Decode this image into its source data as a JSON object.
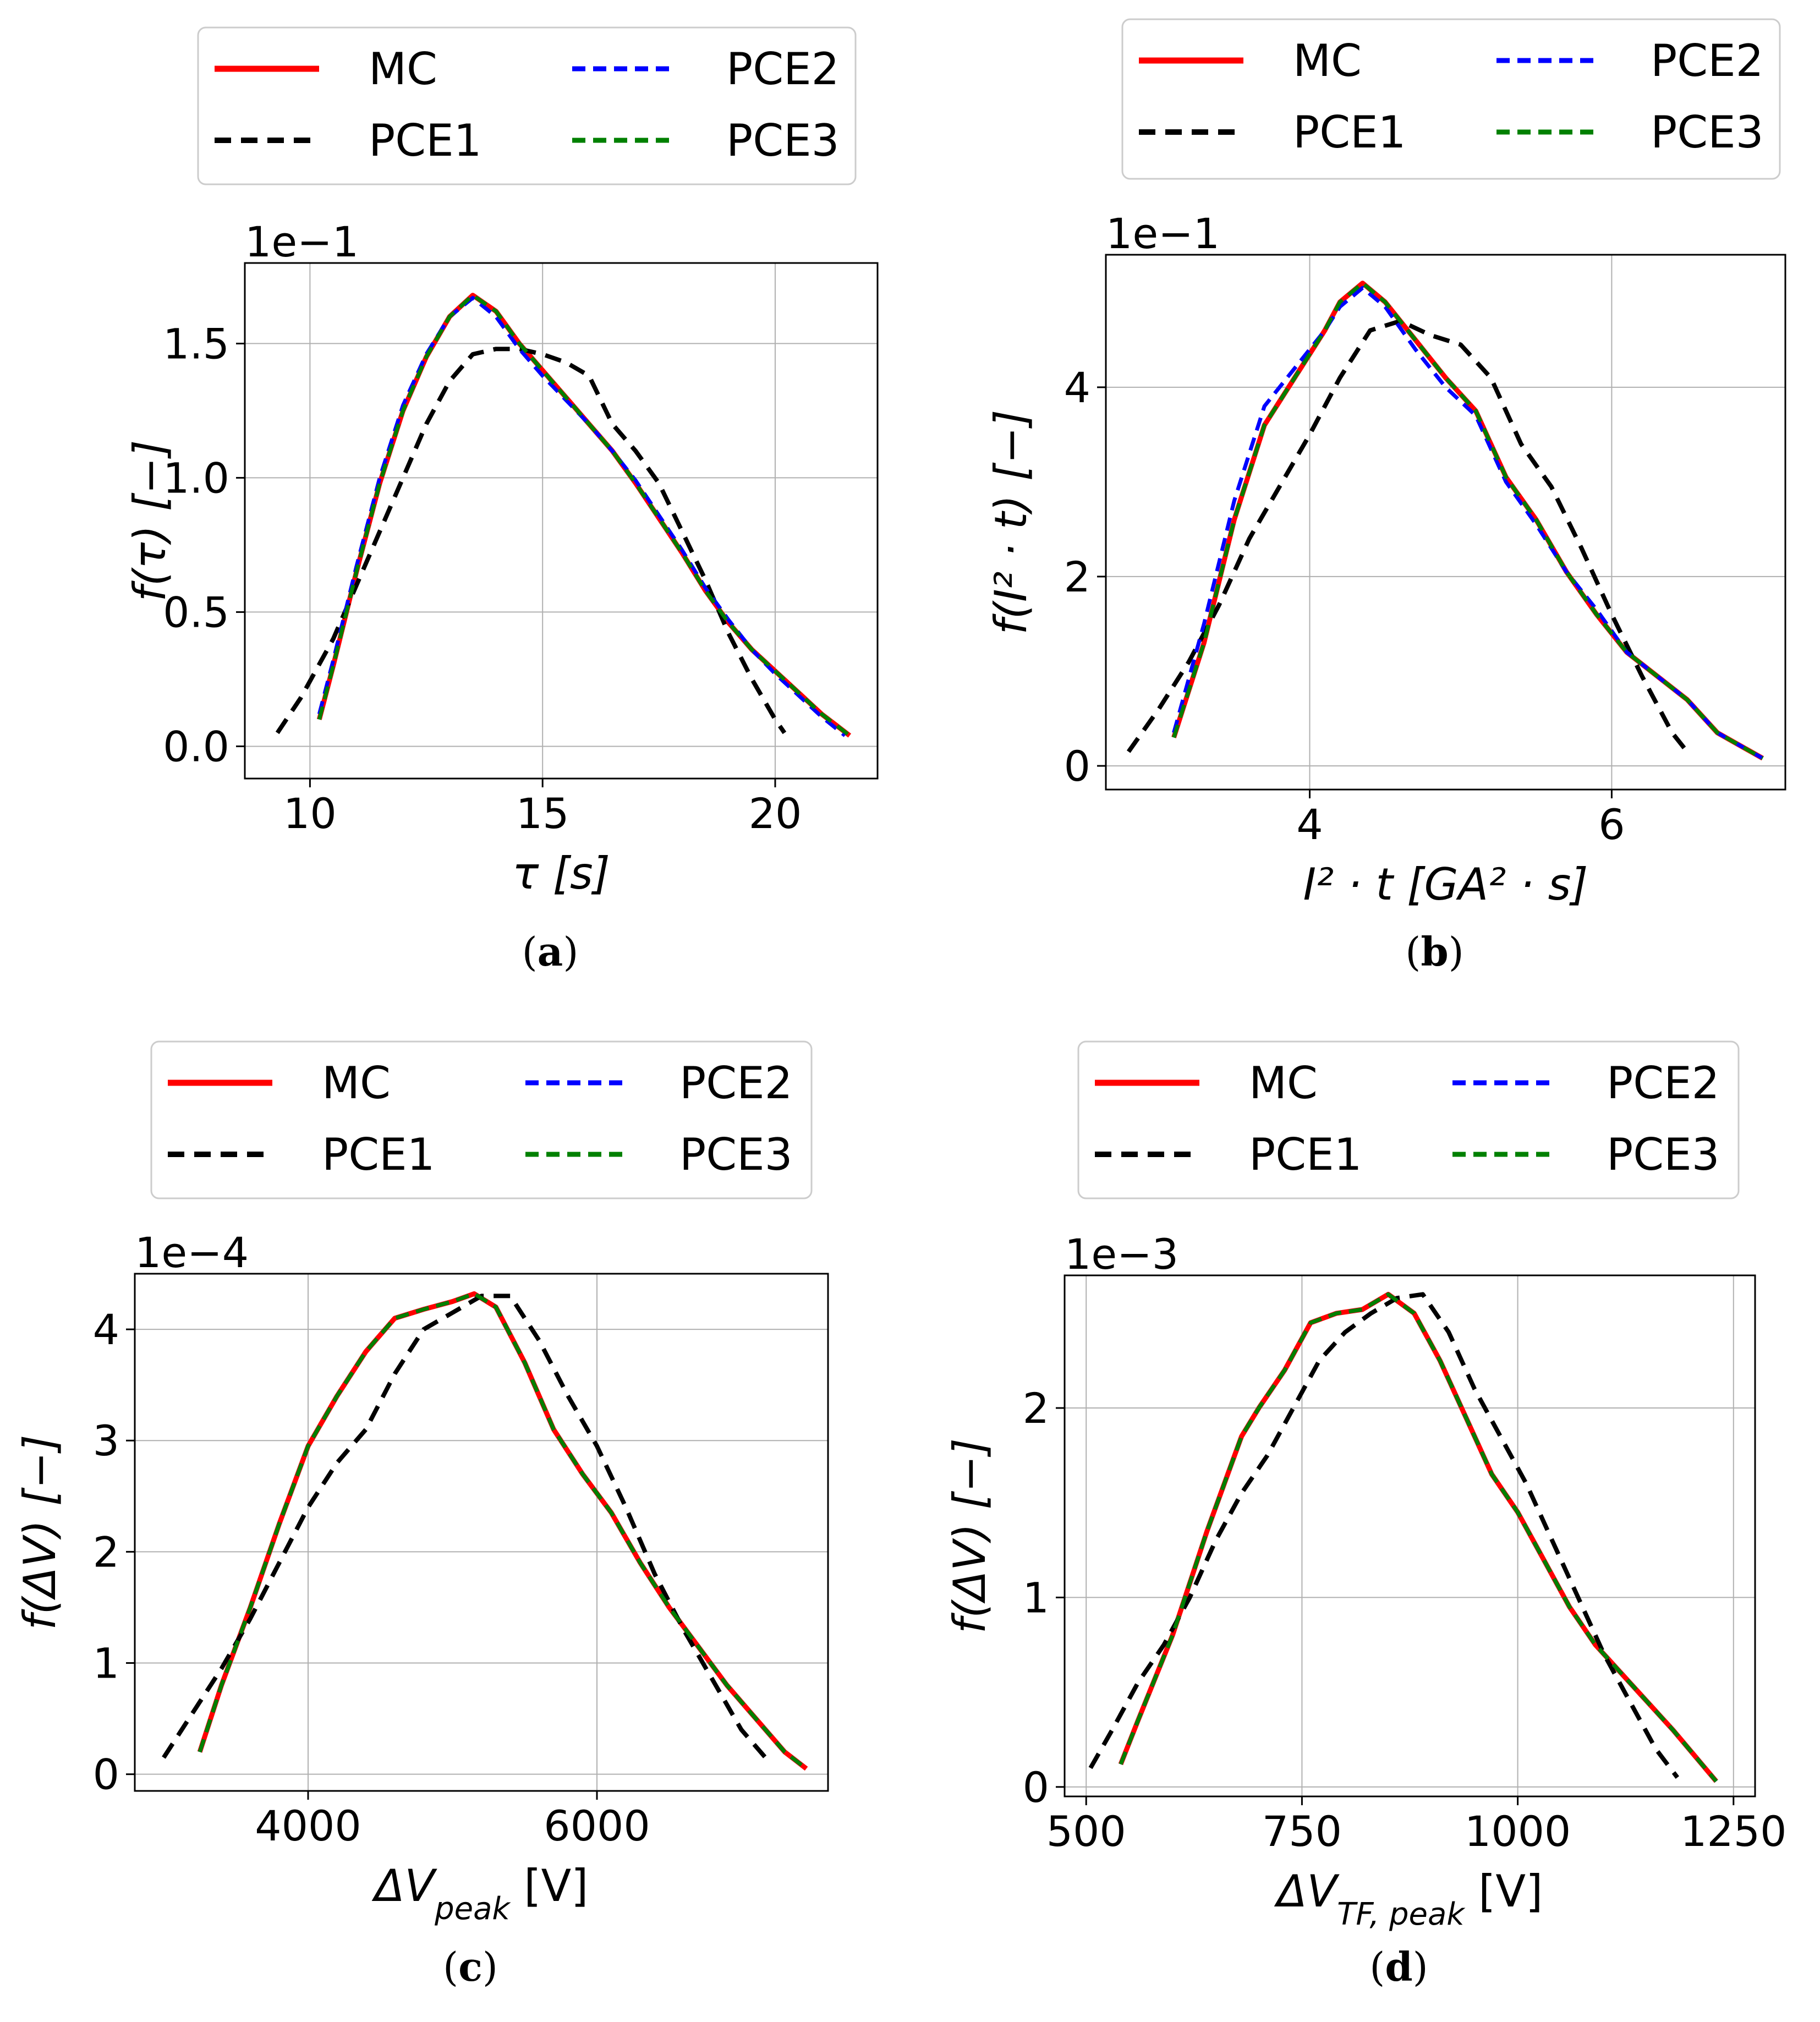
{
  "figure": {
    "colors": {
      "MC": "#ff0000",
      "PCE1": "#000000",
      "PCE2": "#0000ff",
      "PCE3": "#008000",
      "grid": "#b0b0b0"
    }
  },
  "chart_data": [
    {
      "type": "line",
      "panel_label": "a",
      "scale_label": "1e−1",
      "ylabel": "f(τ) [−]",
      "xlabel": "τ [s]",
      "xlim": [
        8.6,
        22.2
      ],
      "ylim": [
        -0.12,
        1.8
      ],
      "xticks": [
        10,
        15,
        20
      ],
      "xtick_labels": [
        "10",
        "15",
        "20"
      ],
      "yticks": [
        0.0,
        0.5,
        1.0,
        1.5
      ],
      "ytick_labels": [
        "0.0",
        "0.5",
        "1.0",
        "1.5"
      ],
      "legend": [
        "MC",
        "PCE1",
        "PCE2",
        "PCE3"
      ],
      "series": [
        {
          "name": "MC",
          "x": [
            10.2,
            10.5,
            11.0,
            11.5,
            12.0,
            12.5,
            13.0,
            13.5,
            14.0,
            14.5,
            15.0,
            15.5,
            16.0,
            16.5,
            17.0,
            17.5,
            18.0,
            18.5,
            19.0,
            19.5,
            20.0,
            20.5,
            21.0,
            21.6
          ],
          "y": [
            0.1,
            0.3,
            0.65,
            0.98,
            1.25,
            1.45,
            1.6,
            1.68,
            1.62,
            1.5,
            1.4,
            1.3,
            1.2,
            1.1,
            0.98,
            0.85,
            0.72,
            0.58,
            0.46,
            0.36,
            0.28,
            0.2,
            0.12,
            0.04
          ]
        },
        {
          "name": "PCE1",
          "x": [
            9.3,
            9.8,
            10.5,
            11.0,
            11.5,
            12.0,
            12.5,
            13.0,
            13.5,
            14.0,
            14.5,
            15.0,
            15.5,
            16.0,
            16.5,
            17.0,
            17.5,
            18.0,
            18.5,
            19.0,
            19.5,
            20.0,
            20.2
          ],
          "y": [
            0.05,
            0.18,
            0.4,
            0.6,
            0.8,
            1.0,
            1.2,
            1.36,
            1.46,
            1.48,
            1.48,
            1.46,
            1.43,
            1.38,
            1.2,
            1.1,
            0.98,
            0.8,
            0.62,
            0.42,
            0.25,
            0.1,
            0.05
          ]
        },
        {
          "name": "PCE2",
          "x": [
            10.2,
            10.5,
            11.0,
            11.5,
            12.0,
            12.5,
            13.0,
            13.5,
            14.0,
            14.5,
            15.0,
            15.5,
            16.0,
            16.5,
            17.0,
            17.5,
            18.0,
            18.5,
            19.0,
            19.5,
            20.0,
            20.5,
            21.0,
            21.5
          ],
          "y": [
            0.12,
            0.32,
            0.67,
            1.0,
            1.27,
            1.46,
            1.6,
            1.67,
            1.6,
            1.48,
            1.38,
            1.29,
            1.2,
            1.1,
            0.99,
            0.86,
            0.73,
            0.59,
            0.47,
            0.36,
            0.27,
            0.19,
            0.11,
            0.04
          ]
        },
        {
          "name": "PCE3",
          "x": [
            10.2,
            10.5,
            11.0,
            11.5,
            12.0,
            12.5,
            13.0,
            13.5,
            14.0,
            14.5,
            15.0,
            15.5,
            16.0,
            16.5,
            17.0,
            17.5,
            18.0,
            18.5,
            19.0,
            19.5,
            20.0,
            20.5,
            21.0,
            21.6
          ],
          "y": [
            0.1,
            0.3,
            0.65,
            0.98,
            1.25,
            1.45,
            1.6,
            1.68,
            1.62,
            1.5,
            1.4,
            1.3,
            1.2,
            1.1,
            0.98,
            0.85,
            0.72,
            0.58,
            0.46,
            0.36,
            0.28,
            0.2,
            0.12,
            0.04
          ]
        }
      ]
    },
    {
      "type": "line",
      "panel_label": "b",
      "scale_label": "1e−1",
      "ylabel": "f(I² · t) [−]",
      "xlabel": "I² · t [GA² · s]",
      "xlim": [
        2.65,
        7.15
      ],
      "ylim": [
        -0.25,
        5.4
      ],
      "xticks": [
        4,
        6
      ],
      "xtick_labels": [
        "4",
        "6"
      ],
      "yticks": [
        0,
        2,
        4
      ],
      "ytick_labels": [
        "0",
        "2",
        "4"
      ],
      "legend": [
        "MC",
        "PCE1",
        "PCE2",
        "PCE3"
      ],
      "series": [
        {
          "name": "MC",
          "x": [
            3.1,
            3.3,
            3.5,
            3.7,
            3.9,
            4.1,
            4.2,
            4.35,
            4.5,
            4.7,
            4.9,
            5.1,
            5.3,
            5.5,
            5.7,
            5.9,
            6.1,
            6.3,
            6.5,
            6.7,
            7.0
          ],
          "y": [
            0.3,
            1.3,
            2.6,
            3.6,
            4.1,
            4.6,
            4.9,
            5.1,
            4.9,
            4.5,
            4.1,
            3.75,
            3.05,
            2.6,
            2.05,
            1.6,
            1.2,
            0.95,
            0.7,
            0.35,
            0.08
          ]
        },
        {
          "name": "PCE1",
          "x": [
            2.8,
            3.0,
            3.2,
            3.4,
            3.6,
            3.8,
            4.0,
            4.2,
            4.4,
            4.6,
            4.8,
            5.0,
            5.2,
            5.4,
            5.6,
            5.8,
            6.0,
            6.2,
            6.4,
            6.5
          ],
          "y": [
            0.15,
            0.6,
            1.1,
            1.7,
            2.4,
            2.95,
            3.5,
            4.1,
            4.6,
            4.7,
            4.55,
            4.45,
            4.1,
            3.4,
            2.95,
            2.3,
            1.6,
            0.95,
            0.35,
            0.15
          ]
        },
        {
          "name": "PCE2",
          "x": [
            3.1,
            3.3,
            3.5,
            3.7,
            3.9,
            4.1,
            4.2,
            4.35,
            4.5,
            4.7,
            4.9,
            5.1,
            5.3,
            5.5,
            5.7,
            5.9,
            6.1,
            6.3,
            6.5,
            6.7,
            7.0
          ],
          "y": [
            0.35,
            1.5,
            2.8,
            3.8,
            4.2,
            4.6,
            4.85,
            5.05,
            4.85,
            4.4,
            4.0,
            3.7,
            3.0,
            2.55,
            2.05,
            1.65,
            1.2,
            0.95,
            0.7,
            0.35,
            0.08
          ]
        },
        {
          "name": "PCE3",
          "x": [
            3.1,
            3.3,
            3.5,
            3.7,
            3.9,
            4.1,
            4.2,
            4.35,
            4.5,
            4.7,
            4.9,
            5.1,
            5.3,
            5.5,
            5.7,
            5.9,
            6.1,
            6.3,
            6.5,
            6.7,
            7.0
          ],
          "y": [
            0.3,
            1.3,
            2.6,
            3.6,
            4.1,
            4.6,
            4.9,
            5.1,
            4.9,
            4.5,
            4.1,
            3.75,
            3.05,
            2.6,
            2.05,
            1.6,
            1.2,
            0.95,
            0.7,
            0.35,
            0.08
          ]
        }
      ]
    },
    {
      "type": "line",
      "panel_label": "c",
      "scale_label": "1e−4",
      "ylabel": "f(ΔV) [−]",
      "xlabel": "ΔV_peak [V]",
      "xlim": [
        2800,
        7600
      ],
      "ylim": [
        -0.15,
        4.5
      ],
      "xticks": [
        4000,
        6000
      ],
      "xtick_labels": [
        "4000",
        "6000"
      ],
      "yticks": [
        0,
        1,
        2,
        3,
        4
      ],
      "ytick_labels": [
        "0",
        "1",
        "2",
        "3",
        "4"
      ],
      "legend": [
        "MC",
        "PCE1",
        "PCE2",
        "PCE3"
      ],
      "series": [
        {
          "name": "MC",
          "x": [
            3250,
            3400,
            3600,
            3800,
            4000,
            4200,
            4400,
            4600,
            4800,
            5000,
            5150,
            5300,
            5500,
            5700,
            5900,
            6100,
            6300,
            6500,
            6700,
            6900,
            7100,
            7300,
            7450
          ],
          "y": [
            0.2,
            0.8,
            1.5,
            2.25,
            2.95,
            3.4,
            3.8,
            4.1,
            4.18,
            4.25,
            4.32,
            4.2,
            3.7,
            3.1,
            2.7,
            2.35,
            1.9,
            1.5,
            1.15,
            0.8,
            0.5,
            0.2,
            0.05
          ]
        },
        {
          "name": "PCE1",
          "x": [
            3000,
            3200,
            3400,
            3600,
            3800,
            4000,
            4200,
            4400,
            4600,
            4800,
            5000,
            5200,
            5400,
            5600,
            5800,
            6000,
            6200,
            6400,
            6600,
            6800,
            7000,
            7200
          ],
          "y": [
            0.15,
            0.55,
            0.95,
            1.4,
            1.9,
            2.4,
            2.8,
            3.1,
            3.6,
            4.0,
            4.15,
            4.3,
            4.3,
            3.9,
            3.4,
            2.95,
            2.4,
            1.8,
            1.3,
            0.85,
            0.4,
            0.1
          ]
        },
        {
          "name": "PCE2",
          "x": [
            3250,
            3400,
            3600,
            3800,
            4000,
            4200,
            4400,
            4600,
            4800,
            5000,
            5150,
            5300,
            5500,
            5700,
            5900,
            6100,
            6300,
            6500,
            6700,
            6900,
            7100,
            7300,
            7450
          ],
          "y": [
            0.2,
            0.8,
            1.5,
            2.25,
            2.95,
            3.4,
            3.8,
            4.1,
            4.18,
            4.25,
            4.32,
            4.2,
            3.7,
            3.1,
            2.7,
            2.35,
            1.9,
            1.5,
            1.15,
            0.8,
            0.5,
            0.2,
            0.05
          ]
        },
        {
          "name": "PCE3",
          "x": [
            3250,
            3400,
            3600,
            3800,
            4000,
            4200,
            4400,
            4600,
            4800,
            5000,
            5150,
            5300,
            5500,
            5700,
            5900,
            6100,
            6300,
            6500,
            6700,
            6900,
            7100,
            7300,
            7450
          ],
          "y": [
            0.2,
            0.8,
            1.5,
            2.25,
            2.95,
            3.4,
            3.8,
            4.1,
            4.18,
            4.25,
            4.32,
            4.2,
            3.7,
            3.1,
            2.7,
            2.35,
            1.9,
            1.5,
            1.15,
            0.8,
            0.5,
            0.2,
            0.05
          ]
        }
      ]
    },
    {
      "type": "line",
      "panel_label": "d",
      "scale_label": "1e−3",
      "ylabel": "f(ΔV) [−]",
      "xlabel": "ΔV_TF, peak [V]",
      "xlim": [
        475,
        1275
      ],
      "ylim": [
        -0.05,
        2.7
      ],
      "xticks": [
        500,
        750,
        1000,
        1250
      ],
      "xtick_labels": [
        "500",
        "750",
        "1000",
        "1250"
      ],
      "yticks": [
        0,
        1,
        2
      ],
      "ytick_labels": [
        "0",
        "1",
        "2"
      ],
      "legend": [
        "MC",
        "PCE1",
        "PCE2",
        "PCE3"
      ],
      "series": [
        {
          "name": "MC",
          "x": [
            540,
            560,
            600,
            640,
            680,
            700,
            730,
            760,
            790,
            820,
            850,
            880,
            910,
            940,
            970,
            1000,
            1030,
            1060,
            1090,
            1120,
            1150,
            1180,
            1230
          ],
          "y": [
            0.12,
            0.35,
            0.8,
            1.35,
            1.85,
            2.0,
            2.2,
            2.45,
            2.5,
            2.52,
            2.6,
            2.5,
            2.25,
            1.95,
            1.65,
            1.45,
            1.2,
            0.95,
            0.75,
            0.6,
            0.45,
            0.3,
            0.03
          ]
        },
        {
          "name": "PCE1",
          "x": [
            505,
            530,
            560,
            590,
            620,
            650,
            680,
            710,
            740,
            770,
            800,
            830,
            860,
            890,
            920,
            950,
            980,
            1010,
            1040,
            1070,
            1100,
            1130,
            1160,
            1185
          ],
          "y": [
            0.1,
            0.3,
            0.55,
            0.75,
            1.0,
            1.3,
            1.55,
            1.75,
            2.0,
            2.25,
            2.4,
            2.5,
            2.58,
            2.6,
            2.4,
            2.1,
            1.85,
            1.6,
            1.3,
            1.0,
            0.7,
            0.45,
            0.2,
            0.05
          ]
        },
        {
          "name": "PCE2",
          "x": [
            540,
            560,
            600,
            640,
            680,
            700,
            730,
            760,
            790,
            820,
            850,
            880,
            910,
            940,
            970,
            1000,
            1030,
            1060,
            1090,
            1120,
            1150,
            1180,
            1230
          ],
          "y": [
            0.12,
            0.35,
            0.8,
            1.35,
            1.85,
            2.0,
            2.2,
            2.45,
            2.5,
            2.52,
            2.6,
            2.5,
            2.25,
            1.95,
            1.65,
            1.45,
            1.2,
            0.95,
            0.75,
            0.6,
            0.45,
            0.3,
            0.03
          ]
        },
        {
          "name": "PCE3",
          "x": [
            540,
            560,
            600,
            640,
            680,
            700,
            730,
            760,
            790,
            820,
            850,
            880,
            910,
            940,
            970,
            1000,
            1030,
            1060,
            1090,
            1120,
            1150,
            1180,
            1230
          ],
          "y": [
            0.12,
            0.35,
            0.8,
            1.35,
            1.85,
            2.0,
            2.2,
            2.45,
            2.5,
            2.52,
            2.6,
            2.5,
            2.25,
            1.95,
            1.65,
            1.45,
            1.2,
            0.95,
            0.75,
            0.6,
            0.45,
            0.3,
            0.03
          ]
        }
      ]
    }
  ]
}
